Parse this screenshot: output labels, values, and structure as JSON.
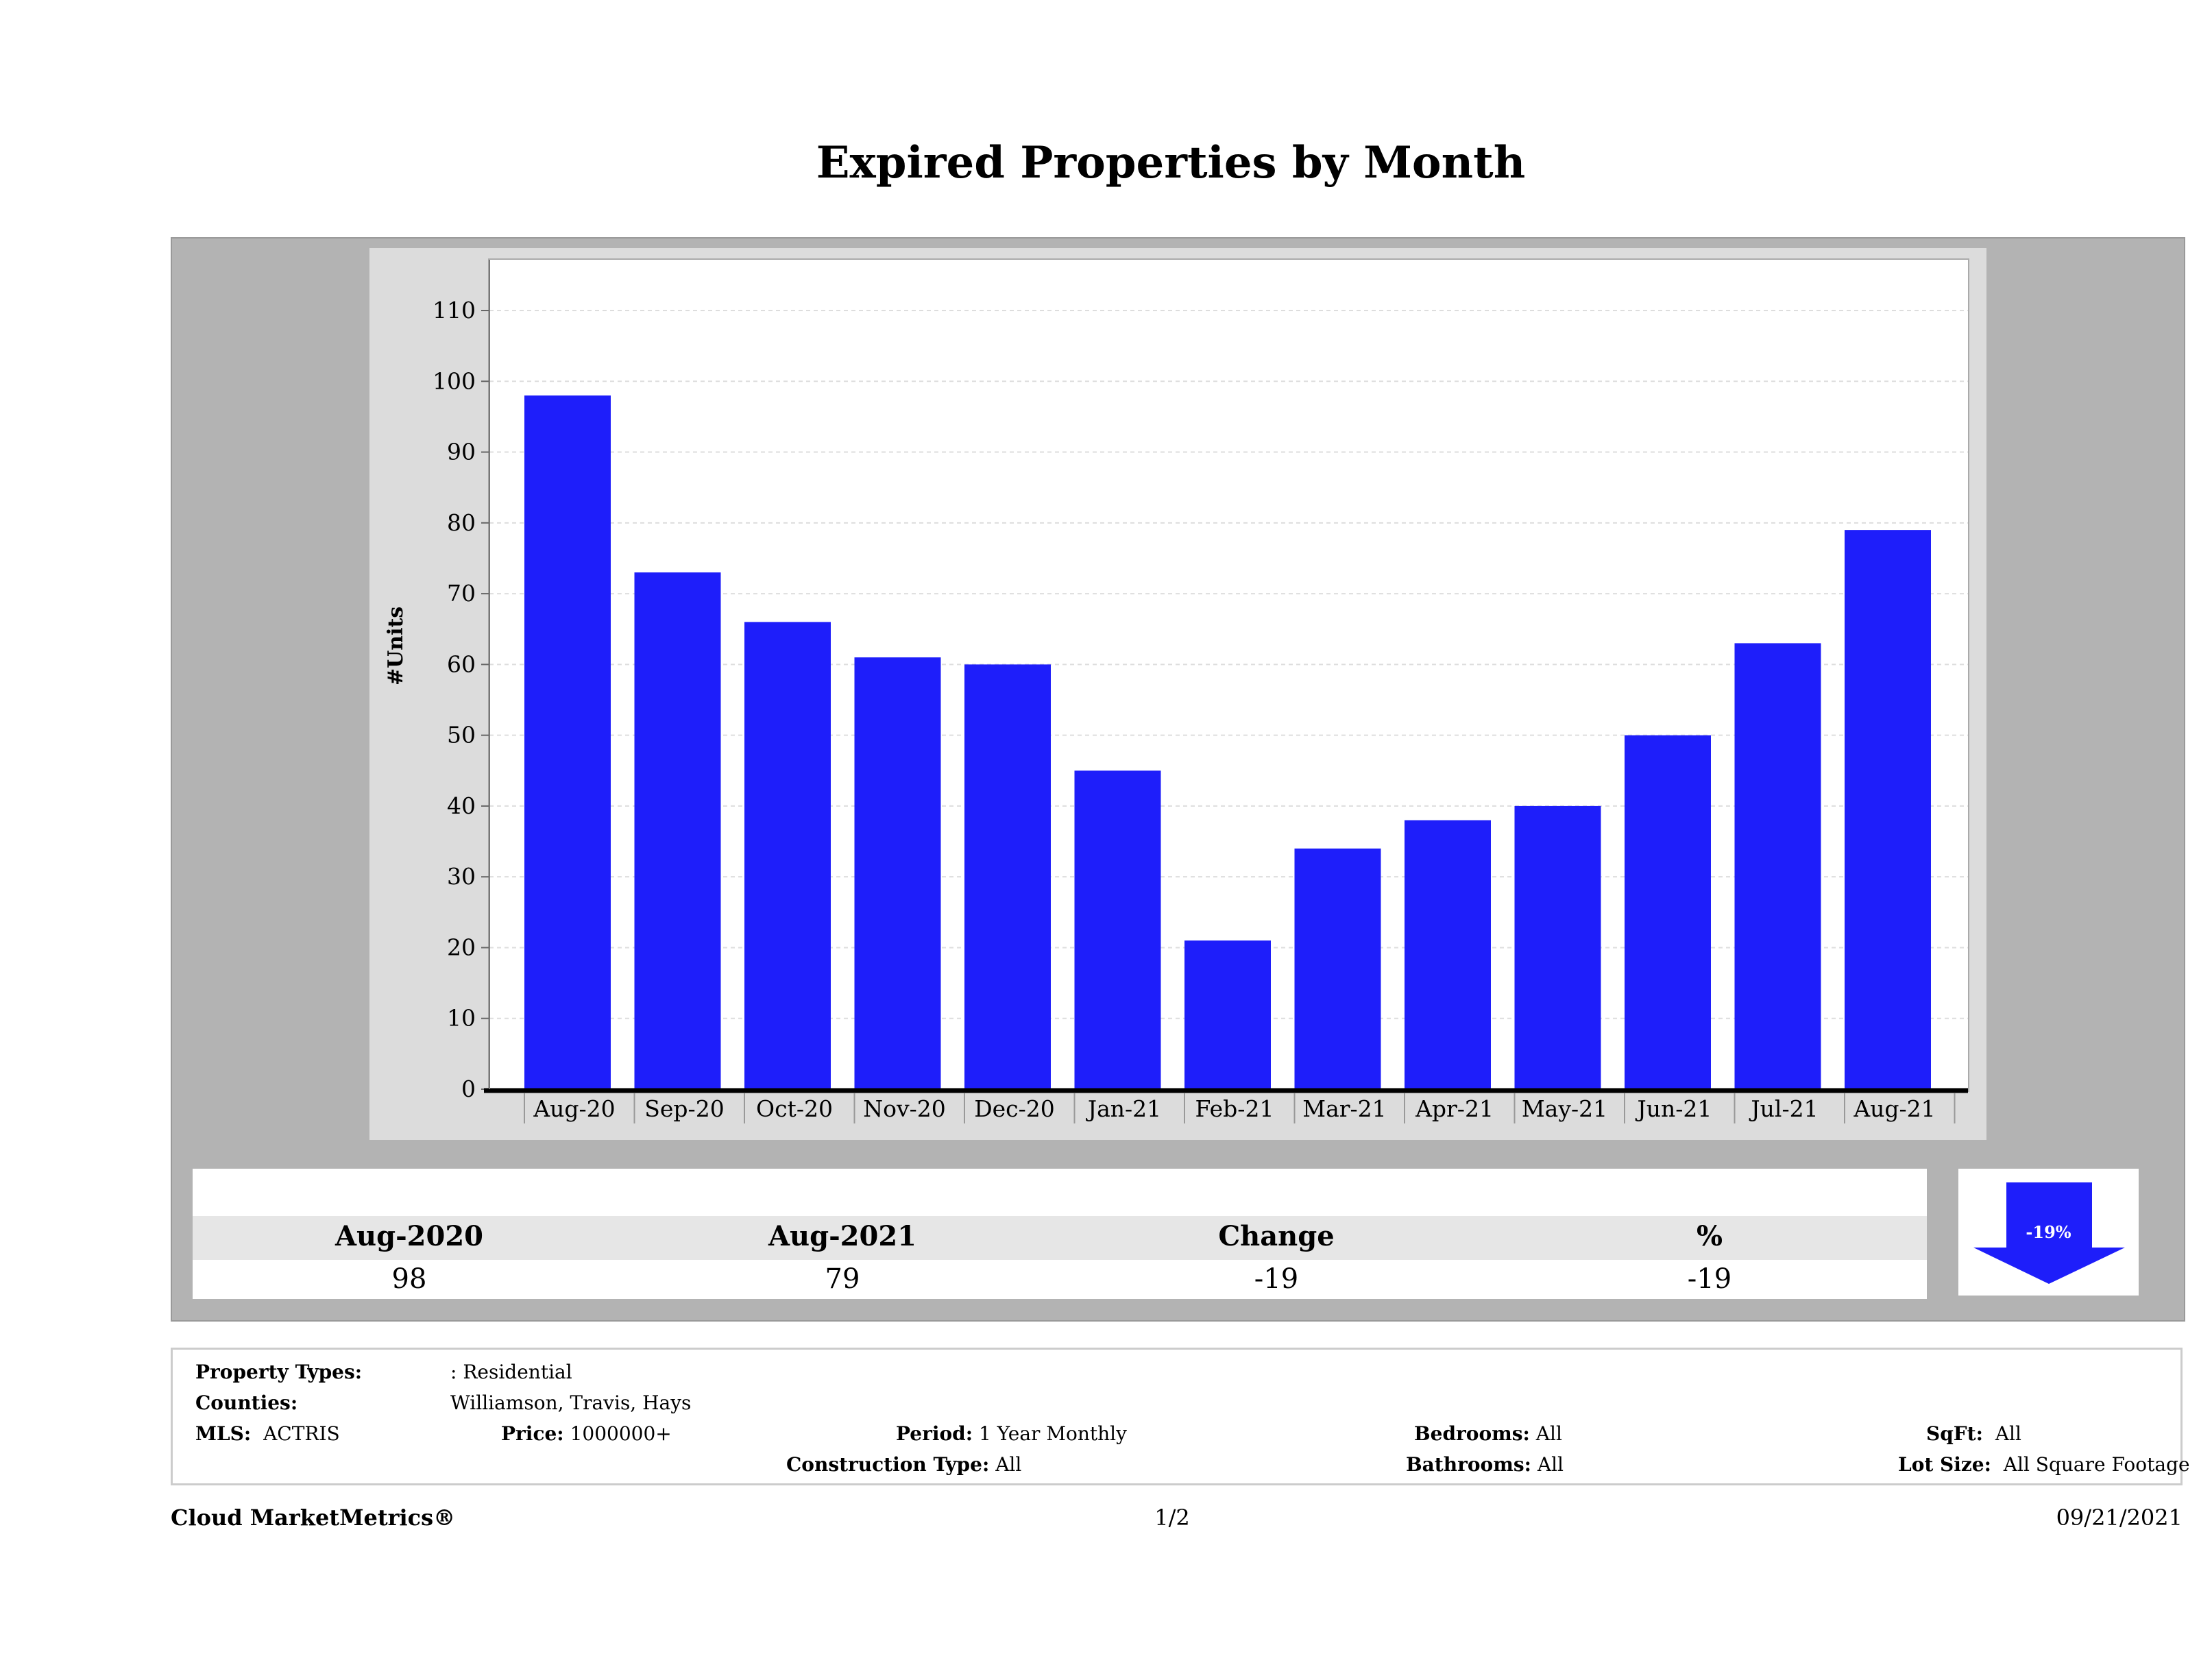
{
  "chart_data": {
    "type": "bar",
    "title": "Expired Properties by Month",
    "ylabel": "#Units",
    "xlabel": "",
    "ylim": [
      0,
      115
    ],
    "yticks": [
      0,
      10,
      20,
      30,
      40,
      50,
      60,
      70,
      80,
      90,
      100,
      110
    ],
    "grid": true,
    "bar_color": "#1e1efa",
    "categories": [
      "Aug-20",
      "Sep-20",
      "Oct-20",
      "Nov-20",
      "Dec-20",
      "Jan-21",
      "Feb-21",
      "Mar-21",
      "Apr-21",
      "May-21",
      "Jun-21",
      "Jul-21",
      "Aug-21"
    ],
    "values": [
      98,
      73,
      66,
      61,
      60,
      45,
      21,
      34,
      38,
      40,
      50,
      63,
      79
    ]
  },
  "summary": {
    "headers": [
      "Aug-2020",
      "Aug-2021",
      "Change",
      "%"
    ],
    "values": [
      "98",
      "79",
      "-19",
      "-19"
    ],
    "arrow": {
      "direction": "down",
      "label": "-19%",
      "color": "#1e1efa"
    }
  },
  "info": {
    "property_types_label": "Property Types:",
    "property_types_value": ": Residential",
    "counties_label": "Counties:",
    "counties_value": "Williamson, Travis, Hays",
    "mls_label": "MLS:",
    "mls_value": "ACTRIS",
    "price_label": "Price:",
    "price_value": "1000000+",
    "period_label": "Period:",
    "period_value": "1 Year Monthly",
    "construction_label": "Construction Type:",
    "construction_value": "All",
    "bedrooms_label": "Bedrooms:",
    "bedrooms_value": "All",
    "bathrooms_label": "Bathrooms:",
    "bathrooms_value": "All",
    "sqft_label": "SqFt:",
    "sqft_value": "All",
    "lotsize_label": "Lot Size:",
    "lotsize_value": "All Square Footage"
  },
  "footer": {
    "brand": "Cloud MarketMetrics®",
    "page": "1/2",
    "date": "09/21/2021"
  }
}
